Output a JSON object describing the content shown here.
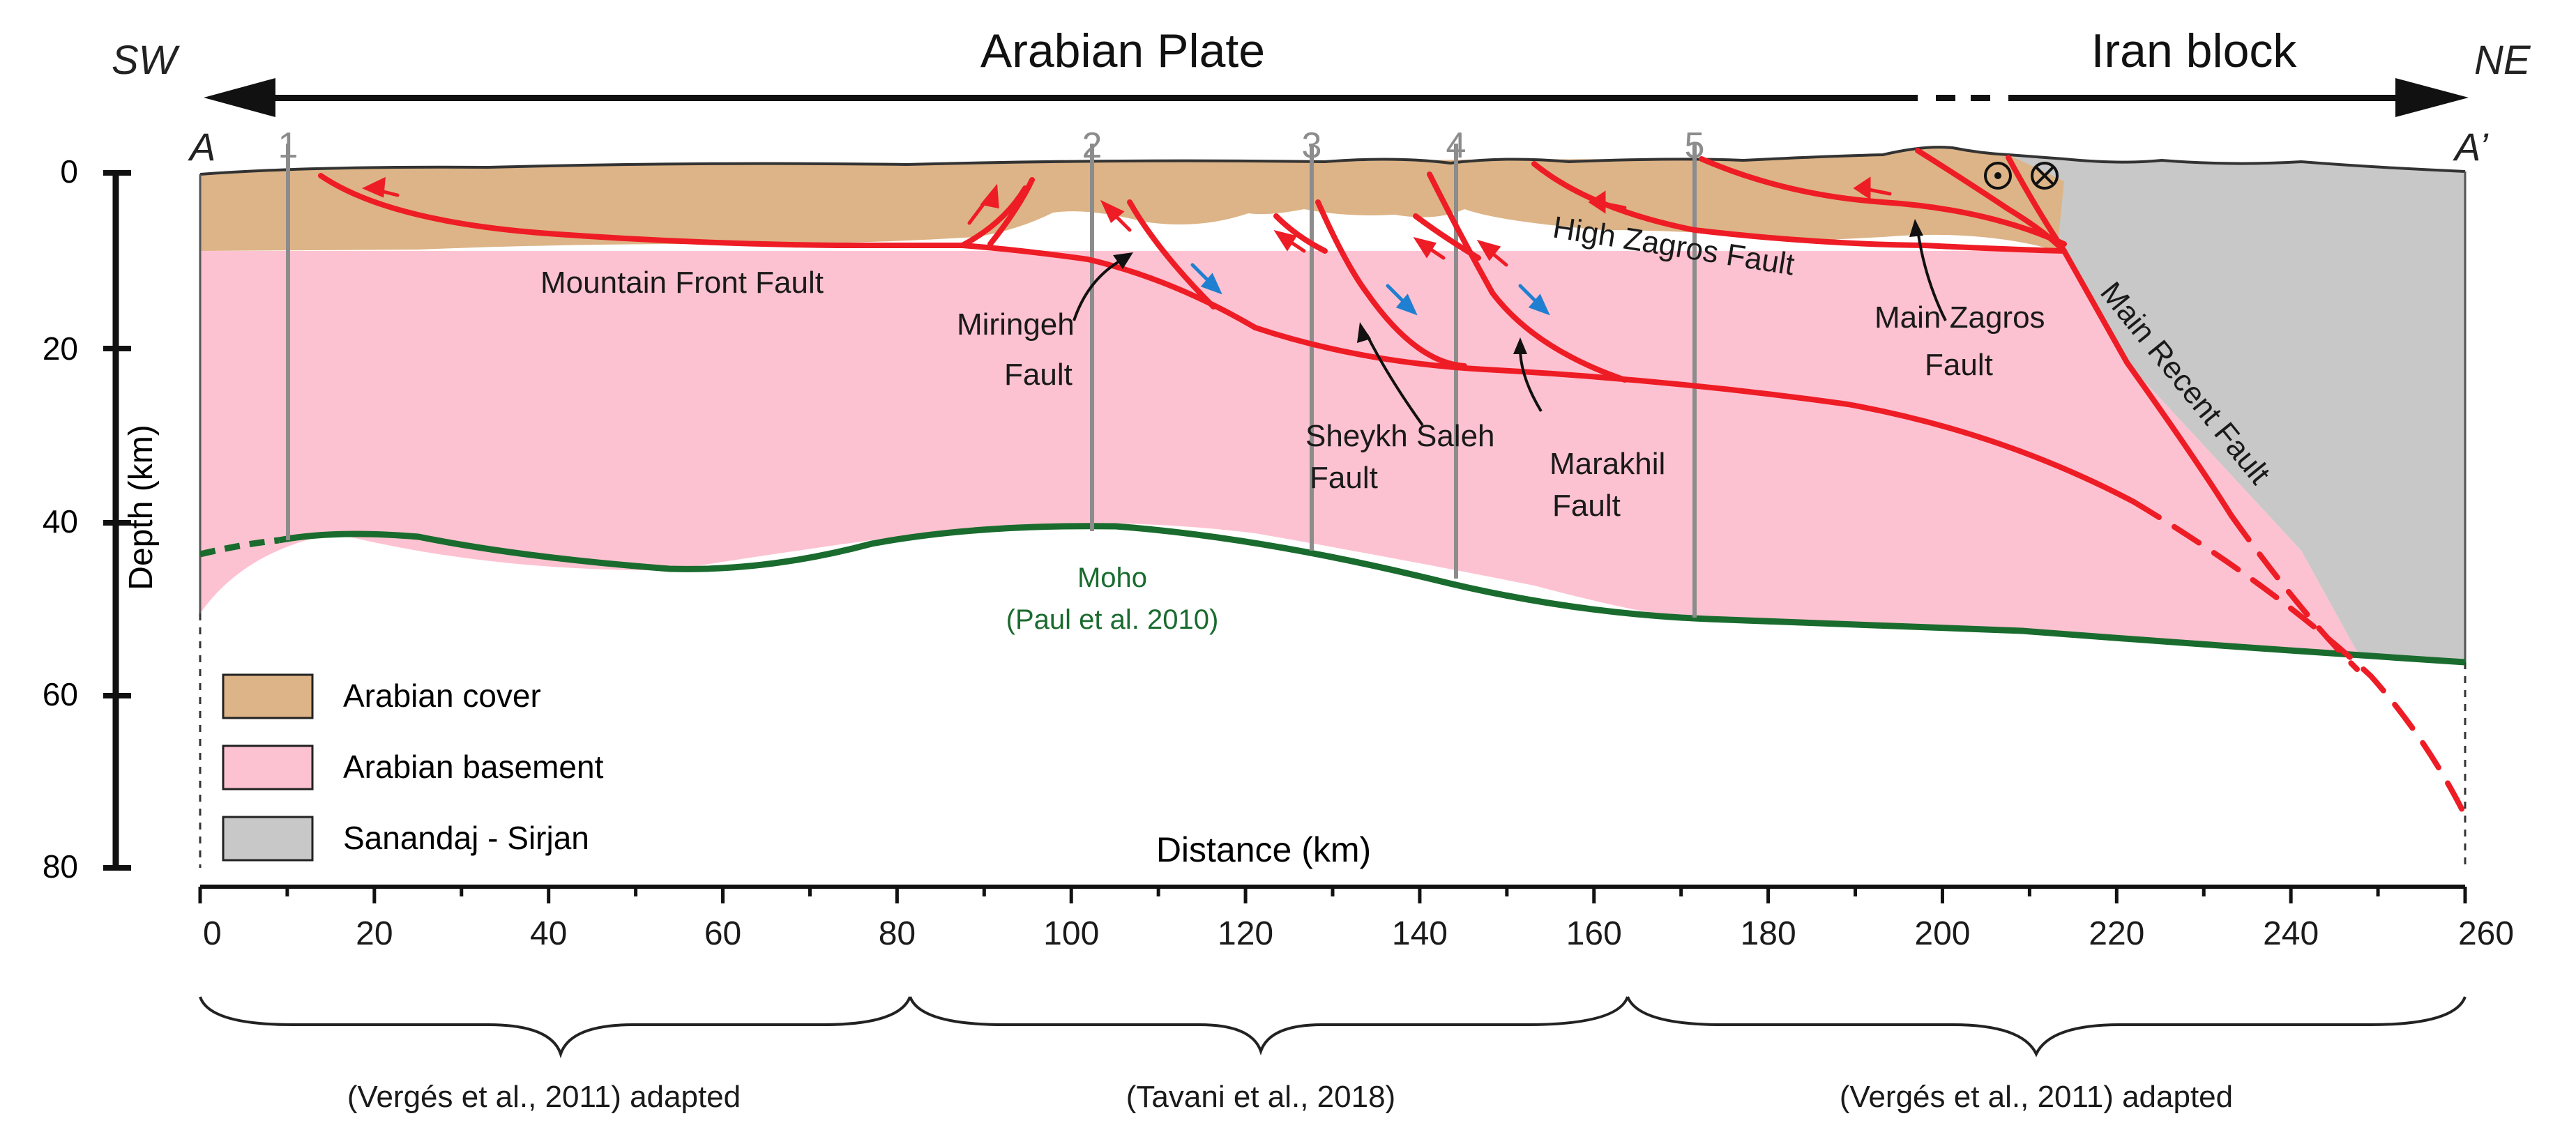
{
  "direction_labels": {
    "sw": "SW",
    "ne": "NE",
    "arabian_plate": "Arabian Plate",
    "iran_block": "Iran block",
    "a_start": "A",
    "a_end": "A’"
  },
  "axes": {
    "depth_label": "Depth (km)",
    "distance_label": "Distance (km)",
    "depth_ticks": [
      "0",
      "20",
      "40",
      "60",
      "80"
    ],
    "distance_ticks": [
      "0",
      "20",
      "40",
      "60",
      "80",
      "100",
      "120",
      "140",
      "160",
      "180",
      "200",
      "220",
      "240",
      "260"
    ]
  },
  "well_labels": [
    "1",
    "2",
    "3",
    "4",
    "5"
  ],
  "fault_labels": {
    "mountain_front": "Mountain Front Fault",
    "miringeh_line1": "Miringeh",
    "miringeh_line2": "Fault",
    "high_zagros": "High Zagros Fault",
    "main_zagros_line1": "Main Zagros",
    "main_zagros_line2": "Fault",
    "sheykh_saleh_line1": "Sheykh Saleh",
    "sheykh_saleh_line2": "Fault",
    "marakhil_line1": "Marakhil",
    "marakhil_line2": "Fault",
    "main_recent": "Main Recent Fault"
  },
  "moho": {
    "label_line1": "Moho",
    "label_line2": "(Paul et al. 2010)"
  },
  "legend": {
    "items": [
      {
        "label": "Arabian cover",
        "color": "#ddb487"
      },
      {
        "label": "Arabian basement",
        "color": "#fdc2d1"
      },
      {
        "label": "Sanandaj - Sirjan",
        "color": "#c8c8c8"
      }
    ]
  },
  "sources": {
    "left": "(Vergés et al., 2011) adapted",
    "middle": "(Tavani et al., 2018)",
    "right": "(Vergés et al., 2011) adapted"
  },
  "colors": {
    "cover": "#ddb487",
    "basement": "#fdc2d1",
    "sanandaj": "#c8c8c8",
    "fault": "#ee1c25",
    "moho": "#1a6b2e",
    "well": "#8c8c8c",
    "blue_arrow": "#1f7fd0"
  }
}
